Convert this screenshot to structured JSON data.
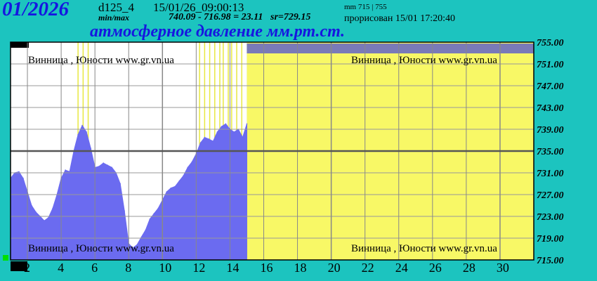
{
  "header": {
    "month": "01/2026",
    "sensor": "d125_4",
    "timestamp": "15/01/26_09:00:13",
    "minmax_label": "min/max",
    "minmax": "740.09 - 716.98 = 23.11",
    "sr": "sr=729.15",
    "mm_range": "mm 715 | 755",
    "drawn": "прорисован 15/01 17:20:40"
  },
  "colors": {
    "background": "#1cc4bf",
    "title": "#1616e0",
    "plot_past": "#ffffff",
    "plot_future": "#f8f866",
    "series": "#6b6bf0",
    "grid": "#444444",
    "top_bar": "#7a7ab8",
    "mean_line": "#555555"
  },
  "chart_data": {
    "type": "area",
    "title": "атмосферное давление мм.рт.ст.",
    "watermark": "Винница , Юности  www.gr.vn.ua",
    "xlim": [
      1,
      32
    ],
    "ylim": [
      715,
      755
    ],
    "yticks": [
      "755.00",
      "751.00",
      "747.00",
      "743.00",
      "739.00",
      "735.00",
      "731.00",
      "727.00",
      "723.00",
      "719.00",
      "715.00"
    ],
    "xticks": [
      "2",
      "4",
      "6",
      "8",
      "10",
      "12",
      "14",
      "16",
      "18",
      "20",
      "22",
      "24",
      "26",
      "28",
      "30"
    ],
    "mean_line": 735,
    "data_until_day": 15.0,
    "x": [
      1.0,
      1.25,
      1.5,
      1.75,
      2.0,
      2.25,
      2.5,
      2.75,
      3.0,
      3.25,
      3.5,
      3.75,
      4.0,
      4.25,
      4.5,
      4.75,
      5.0,
      5.25,
      5.5,
      5.75,
      6.0,
      6.25,
      6.5,
      6.75,
      7.0,
      7.25,
      7.5,
      7.75,
      8.0,
      8.25,
      8.5,
      8.75,
      9.0,
      9.25,
      9.5,
      9.75,
      10.0,
      10.25,
      10.5,
      10.75,
      11.0,
      11.25,
      11.5,
      11.75,
      12.0,
      12.25,
      12.5,
      12.75,
      13.0,
      13.25,
      13.5,
      13.75,
      14.0,
      14.25,
      14.5,
      14.75,
      15.0
    ],
    "y": [
      730,
      731,
      731.2,
      730,
      727.5,
      725,
      723.8,
      723,
      722.2,
      722.8,
      724.5,
      727,
      730,
      731.5,
      731.2,
      735,
      738,
      739.7,
      738.5,
      735.5,
      732,
      732.2,
      732.8,
      732.4,
      732,
      731,
      729,
      724,
      718,
      717.2,
      717.8,
      719.2,
      720.5,
      722.5,
      723.5,
      724.5,
      726,
      727.5,
      728.2,
      728.5,
      729.5,
      730.5,
      732,
      733,
      734.5,
      736.5,
      737.5,
      737.2,
      736.8,
      738.5,
      739.5,
      740,
      739,
      738.5,
      739,
      737.5,
      740
    ],
    "past_gap_markers": [
      5.0,
      5.3,
      5.6,
      12.2,
      12.5,
      12.8,
      13.1,
      13.4,
      13.6,
      13.9,
      14.1,
      14.4,
      14.7
    ]
  }
}
